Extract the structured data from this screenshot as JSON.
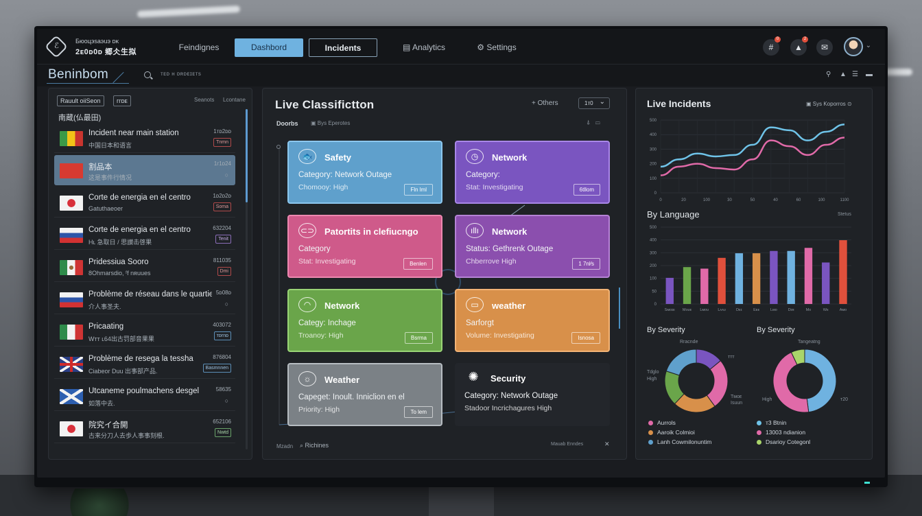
{
  "brand": {
    "line1": "Бюоцэsaэuэ ᴅᴋ",
    "line2": "2ᴇ0ᴅ0ᴅ 郷仌生拟"
  },
  "nav": {
    "items": [
      "Feindignes",
      "Dashbord",
      "Incidents",
      "Analytics",
      "Settings"
    ],
    "active": "Dashbord"
  },
  "header_icons": {
    "badge1": "0",
    "badge2": "2"
  },
  "page": {
    "title": "Beninbom",
    "search_placeholder": "ᴛᴇᴅ ʜ ᴅʀᴅᴇɪᴇᴛs"
  },
  "list_panel": {
    "chip1": "Rauult oiiSeon",
    "chip2": "ᴦᴦᴅᴇ",
    "sort1": "Seanots",
    "sort2": "Lcontane",
    "group": "南蔵(仏最田)",
    "items": [
      {
        "title": "Incident near main station",
        "sub": "中国日本和语言",
        "num": "1ᴛᴅ2ᴅᴅ",
        "tag": "Tnmn",
        "tag_style": "red"
      },
      {
        "title": "割品本",
        "sub": "这是事件行情况",
        "num": "1ᴦ1ᴅ24",
        "tag": "○",
        "tag_style": "mark"
      },
      {
        "title": "Corte de energia en el centro",
        "sub": "Gatuthaeoer",
        "num": "1ᴅ2ᴅ2ᴅ",
        "tag": "Soma",
        "tag_style": "red"
      },
      {
        "title": "Corte de energia en el centro",
        "sub": "Hʟ 急取日 / 思讃击啓果",
        "num": "632204",
        "tag": "Tenit",
        "tag_style": "violet"
      },
      {
        "title": "Pridessiua Sooro",
        "sub": "8Ohmarsdio, ᶠf nʀuues",
        "num": "811035",
        "tag": "Dmi",
        "tag_style": "red"
      },
      {
        "title": "Problème de réseau dans le quartier",
        "sub": "介人事圣夫.",
        "num": "5ᴅ08ᴅ",
        "tag": "○",
        "tag_style": "mark"
      },
      {
        "title": "Pricaating",
        "sub": "Wᴛᴛ ʟ64出古罚部音果果",
        "num": "403072",
        "tag": "ᴛᴅᴦnᴅ",
        "tag_style": "blue"
      },
      {
        "title": "Problème de resega la tessha",
        "sub": "Ciabeor Duu 出事部产品.",
        "num": "876804",
        "tag": "Basmnnen",
        "tag_style": "blue"
      },
      {
        "title": "Utcaneme poulmachens desgel",
        "sub": "如落中去.",
        "num": "58635",
        "tag": "○",
        "tag_style": "mark"
      },
      {
        "title": "院究イ合開",
        "sub": "古来分刀人去歩人事事刻根.",
        "num": "652106",
        "tag": "Nwtd",
        "tag_style": "green"
      }
    ],
    "flags": [
      "brazil",
      "china",
      "japan",
      "russia",
      "mexico",
      "russia",
      "italy",
      "uk",
      "scotland",
      "japan"
    ]
  },
  "classification": {
    "title": "Live Classifictton",
    "others": "+ Others",
    "select_value": "1ᴛ0",
    "tab1": "Doorbs",
    "tab2": "Bys Eperotes",
    "cards": [
      {
        "icon": "🐟",
        "title": "Safety",
        "line1": "Category: Network Outage",
        "line2": "Chomooy: High",
        "btn": "Fln lml",
        "style": "blue"
      },
      {
        "icon": "◷",
        "title": "Network",
        "line1": "Category:",
        "line2": "Stat: Investigating",
        "btn": "6tllom",
        "style": "violet"
      },
      {
        "icon": "⊂⊃",
        "title": "Patortits in clefiucngo",
        "line1": "Category",
        "line2": "Stat: Investigating",
        "btn": "Benlen",
        "style": "pink"
      },
      {
        "icon": "ıllı",
        "title": "Network",
        "line1": "Status: Gethrenk Outage",
        "line2": "Chberrove High",
        "btn": "1 7nl⁄s",
        "style": "purple2"
      },
      {
        "icon": "◠",
        "title": "Network",
        "line1": "Categy: Inchage",
        "line2": "Troanoy: High",
        "btn": "Bsrma",
        "style": "green"
      },
      {
        "icon": "▭",
        "title": "weather",
        "line1": "Sarforgt",
        "line2": "Volume: Investigating",
        "btn": "Isnosa",
        "style": "orange"
      },
      {
        "icon": "☼",
        "title": "Weather",
        "line1": "Capeget: Inoult. Inniclion en el",
        "line2": "Priority: High",
        "btn": "To lem",
        "style": "gray"
      },
      {
        "icon": "✺",
        "title": "Security",
        "line1": "Category: Network Outage",
        "line2": "Stadoor Incrichagures High",
        "btn": "",
        "style": "dark"
      }
    ],
    "footer1": "Mzadn",
    "footer2": "Richines",
    "footer3": "Mauab Enndes",
    "footer_close": "✕"
  },
  "right": {
    "title1": "Live Incidents",
    "legend1": "Sys Koporros",
    "title2": "By Language",
    "legend2": "Stetus",
    "title3": "By Severity",
    "title4": "By Severity",
    "donut1_top": "Rracnde",
    "donut2_top": "Tangeatng",
    "donut1_labels": [
      "ᴛᴛᴛ",
      "Tdglo",
      "High",
      "Tᴍᴏᴇ",
      "Isuun"
    ],
    "donut2_labels": [
      "High",
      "ᴛ20"
    ],
    "legend_left": [
      "Aurrols",
      "Aaroik Colmioi",
      "Lanh Cowmilonuntim"
    ],
    "legend_right": [
      "ᴛ3 Btnin",
      "13003 ndianion",
      "Dsarioy Cotegonl"
    ]
  },
  "chart_data": [
    {
      "type": "line",
      "title": "Live Incidents",
      "x": [
        0,
        100,
        200,
        300,
        400,
        500,
        600,
        700,
        800,
        900,
        1000
      ],
      "xticks": [
        "0",
        "20",
        "100",
        "30",
        "50",
        "40",
        "60",
        "100",
        "1100"
      ],
      "yticks": [
        "500",
        "400",
        "300",
        "200",
        "100",
        "0"
      ],
      "ylim": [
        0,
        500
      ],
      "series": [
        {
          "name": "",
          "color": "#6fc3e8",
          "values": [
            180,
            230,
            270,
            250,
            260,
            330,
            450,
            430,
            360,
            420,
            470
          ]
        },
        {
          "name": "",
          "color": "#e06aa8",
          "values": [
            120,
            180,
            200,
            170,
            160,
            230,
            360,
            320,
            260,
            330,
            380
          ]
        }
      ]
    },
    {
      "type": "bar",
      "title": "By Language",
      "categories": [
        "Sᴍᴏɪᴇ",
        "Mᴏᴜᴇ",
        "Lᴍᴏᴜ",
        "Lᴀᴀᴜ",
        "Dᴇɪ",
        "Eᴇᴇ",
        "Lᴍᴏ",
        "Dɪʀ",
        "Mᴏ",
        "Wᴇ",
        "Aᴍᴏ"
      ],
      "yticks": [
        "500",
        "400",
        "300",
        "200",
        "100",
        "50",
        "0"
      ],
      "ylim": [
        0,
        500
      ],
      "series": [
        {
          "name": "",
          "values": [
            170,
            240,
            230,
            300,
            330,
            330,
            345,
            345,
            365,
            270,
            415
          ]
        }
      ],
      "colors": [
        "#7a55c0",
        "#6aa54a",
        "#e06aa8",
        "#e0503c",
        "#6fb2e0",
        "#d8904a",
        "#7a55c0",
        "#6fb2e0",
        "#e06aa8",
        "#7a55c0",
        "#e0503c"
      ]
    },
    {
      "type": "pie",
      "title": "By Severity",
      "labels": [
        "",
        "",
        "",
        "",
        ""
      ],
      "values": [
        14,
        26,
        22,
        18,
        20
      ],
      "colors": [
        "#7a55c0",
        "#e06aa8",
        "#d8904a",
        "#6aa54a",
        "#5fa0cc"
      ]
    },
    {
      "type": "pie",
      "title": "By Severity",
      "labels": [
        "",
        "",
        ""
      ],
      "values": [
        48,
        45,
        7
      ],
      "colors": [
        "#6fb2e0",
        "#e06aa8",
        "#a9d56a"
      ]
    }
  ]
}
